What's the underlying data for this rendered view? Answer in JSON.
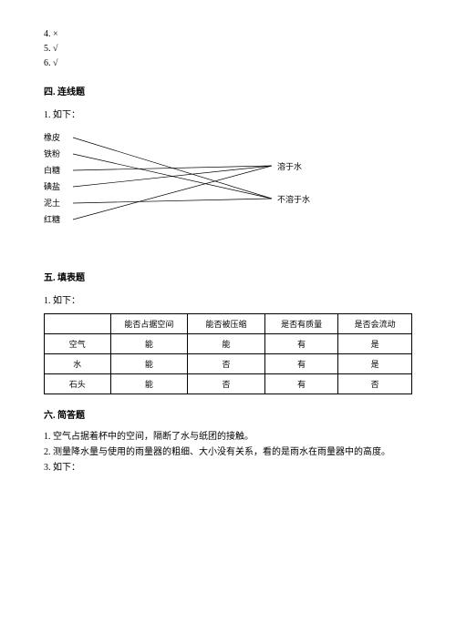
{
  "topAnswers": {
    "a4": "4. ×",
    "a5": "5. √",
    "a6": "6. √"
  },
  "section4": {
    "heading": "四. 连线题",
    "sub": "1. 如下：",
    "leftItems": [
      "橡皮",
      "铁粉",
      "白糖",
      "碘盐",
      "泥土",
      "红糖"
    ],
    "rightItems": [
      "溶于水",
      "不溶于水"
    ],
    "lines": {
      "stroke": "#000000",
      "strokeWidth": 0.7,
      "leftX": 32,
      "rightX": 250,
      "leftYs": [
        9,
        27,
        45,
        63,
        81,
        99
      ],
      "rightYs": [
        40,
        76
      ],
      "edges": [
        [
          0,
          1
        ],
        [
          1,
          1
        ],
        [
          2,
          0
        ],
        [
          3,
          0
        ],
        [
          4,
          1
        ],
        [
          5,
          0
        ]
      ]
    }
  },
  "section5": {
    "heading": "五. 填表题",
    "sub": "1. 如下：",
    "table": {
      "headers": [
        "",
        "能否占据空间",
        "能否被压缩",
        "是否有质量",
        "是否会流动"
      ],
      "rows": [
        [
          "空气",
          "能",
          "能",
          "有",
          "是"
        ],
        [
          "水",
          "能",
          "否",
          "有",
          "是"
        ],
        [
          "石头",
          "能",
          "否",
          "有",
          "否"
        ]
      ],
      "colWidths": [
        "18%",
        "21%",
        "21%",
        "20%",
        "20%"
      ]
    }
  },
  "section6": {
    "heading": "六. 简答题",
    "p1": "1. 空气占据着杯中的空间，隔断了水与纸团的接触。",
    "p2": "2. 测量降水量与使用的雨量器的粗细、大小没有关系，看的是雨水在雨量器中的高度。",
    "p3": "3. 如下："
  }
}
